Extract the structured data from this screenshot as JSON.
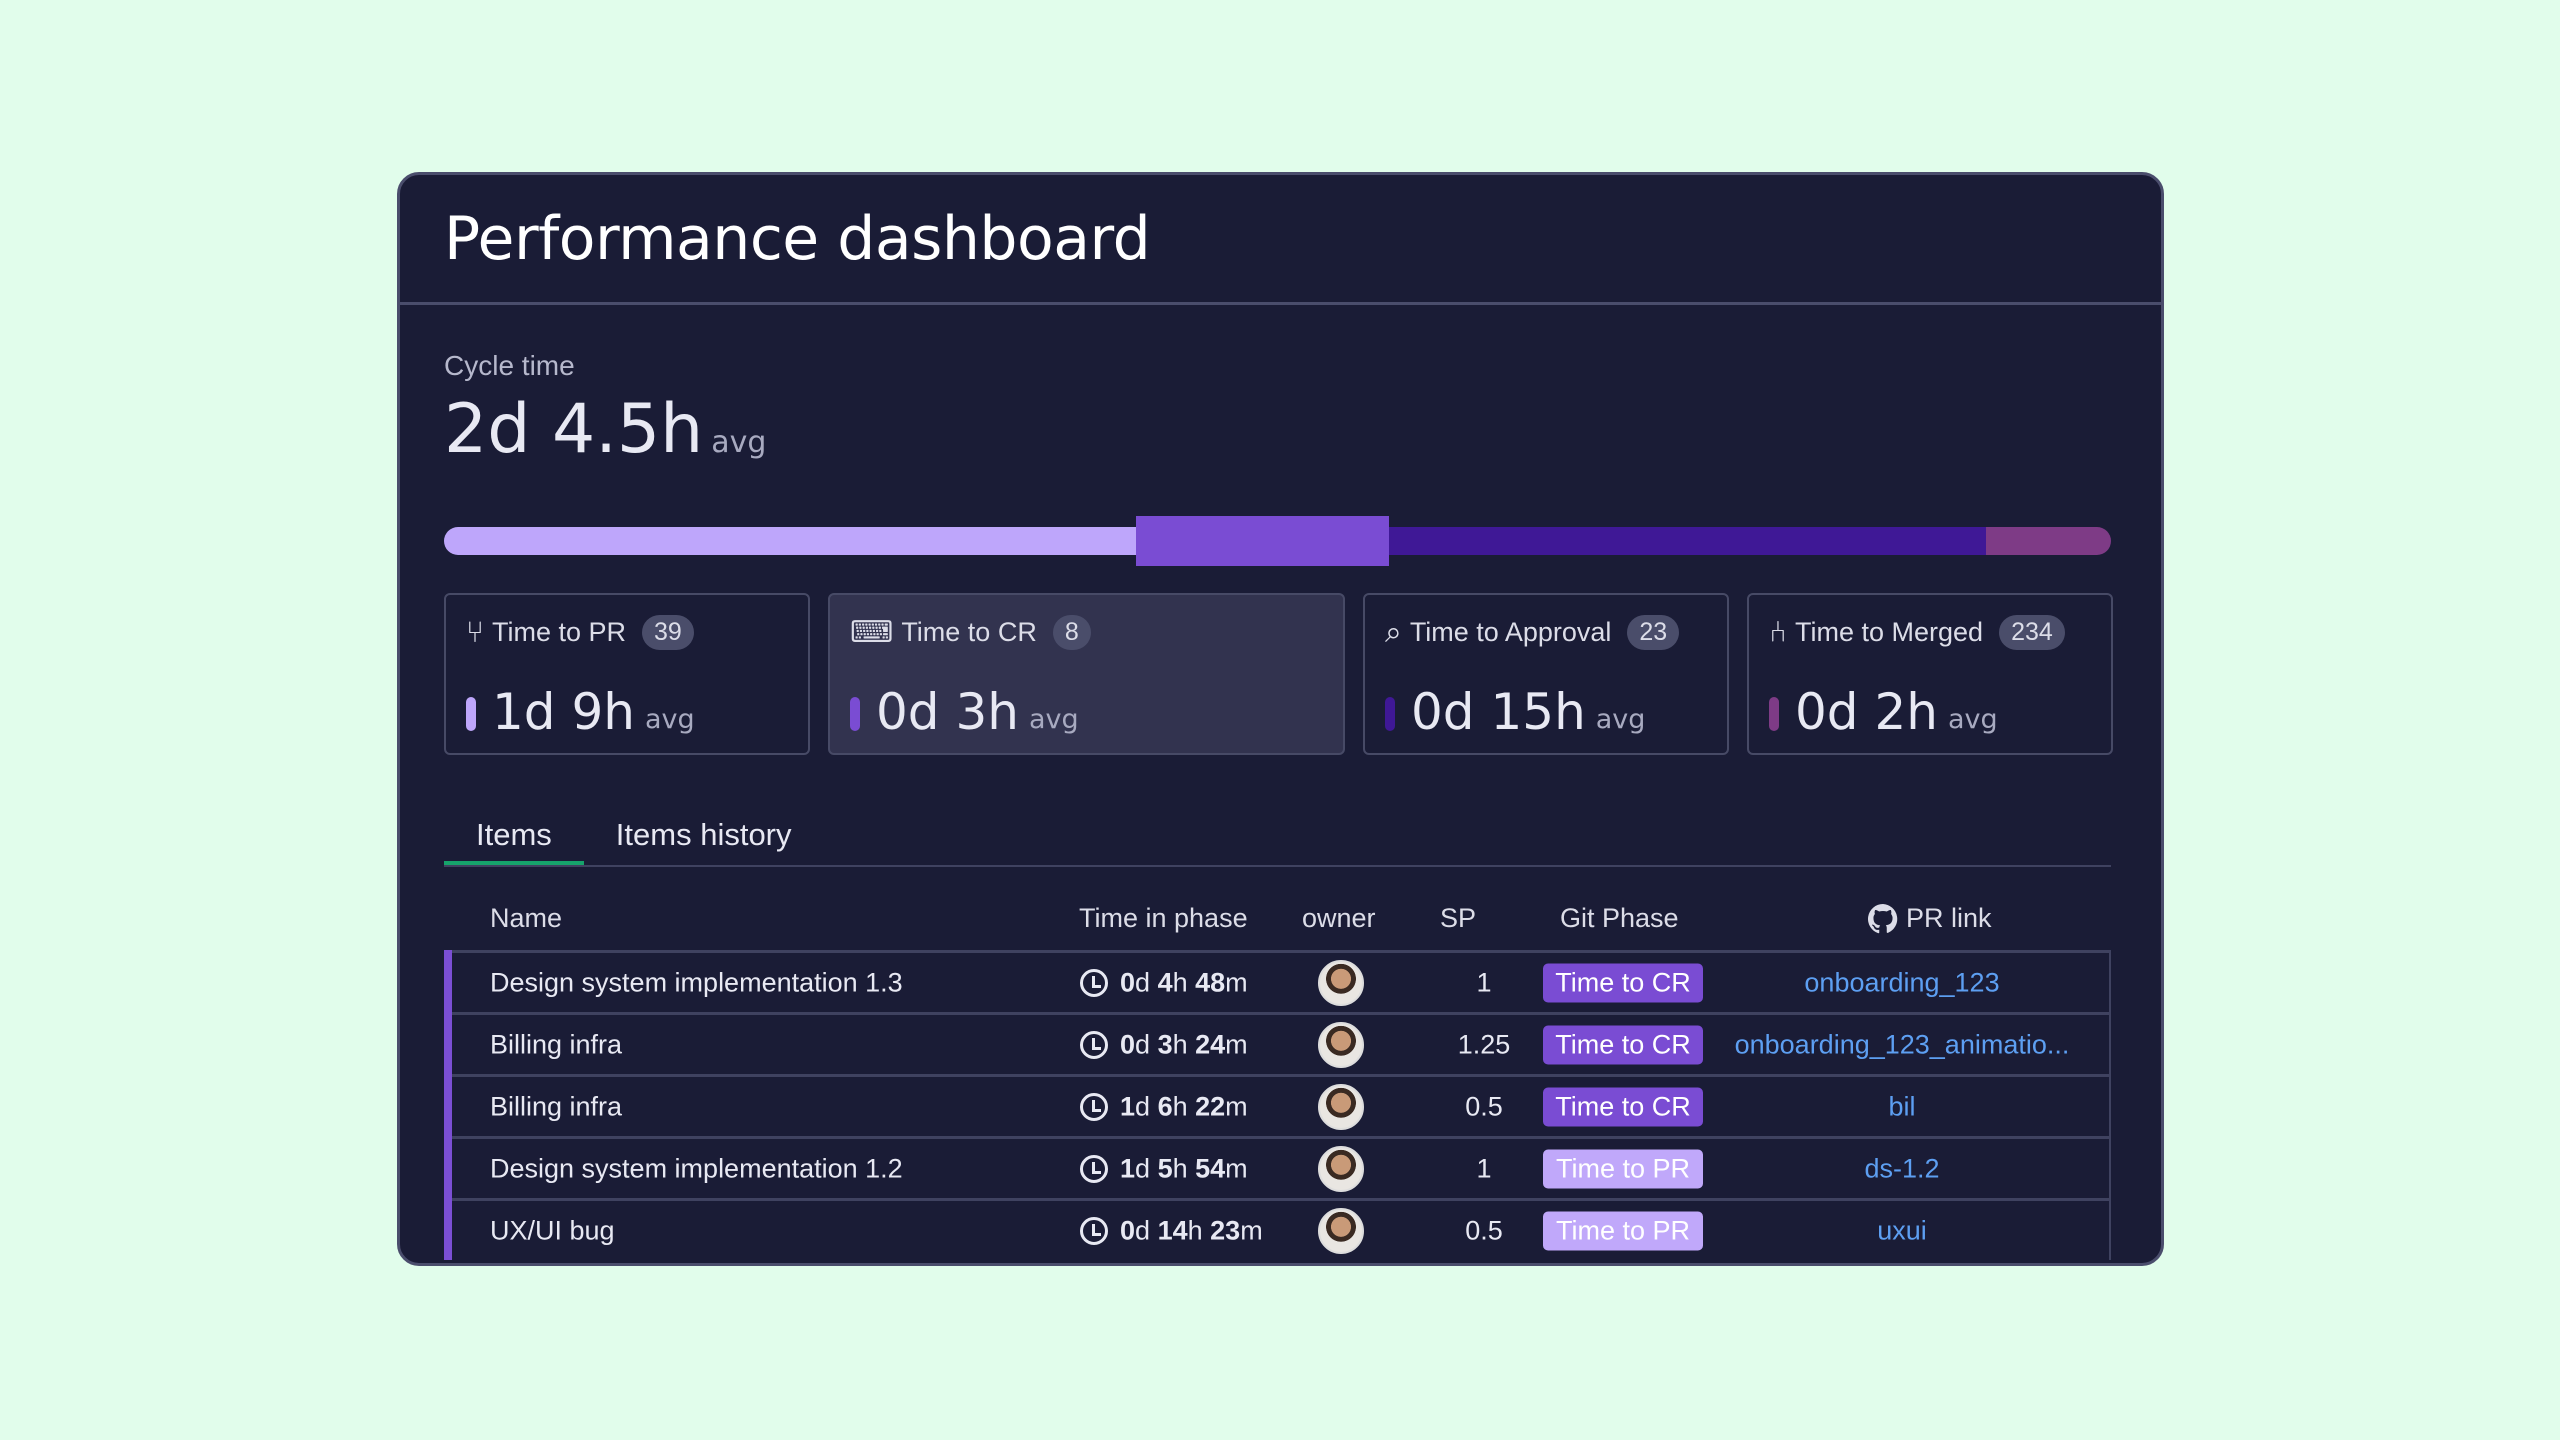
{
  "title": "Performance dashboard",
  "cycle": {
    "label": "Cycle time",
    "value": "2d 4.5h",
    "suffix": "avg"
  },
  "phase_bar": [
    {
      "name": "Time to PR",
      "color": "#bea6fb",
      "share": 41.5
    },
    {
      "name": "Time to CR",
      "color": "#7a4cd3",
      "share": 15.2,
      "selected": true
    },
    {
      "name": "Time to Approval",
      "color": "#3f1896",
      "share": 35.8
    },
    {
      "name": "Time to Merged",
      "color": "#7e3b86",
      "share": 7.5
    }
  ],
  "kpis": [
    {
      "label": "Time to PR",
      "count": "39",
      "value": "1d 9h",
      "suffix": "avg",
      "icon": "pull-request-icon",
      "color": "#bea6fb"
    },
    {
      "label": "Time to CR",
      "count": "8",
      "value": "0d 3h",
      "suffix": "avg",
      "icon": "code-review-icon",
      "color": "#7a4cd3"
    },
    {
      "label": "Time to Approval",
      "count": "23",
      "value": "0d 15h",
      "suffix": "avg",
      "icon": "search-check-icon",
      "color": "#3f1896"
    },
    {
      "label": "Time to Merged",
      "count": "234",
      "value": "0d 2h",
      "suffix": "avg",
      "icon": "merge-icon",
      "color": "#7e3b86"
    }
  ],
  "tabs": [
    {
      "label": "Items",
      "active": true
    },
    {
      "label": "Items history"
    }
  ],
  "table": {
    "headers": {
      "name": "Name",
      "time": "Time in phase",
      "owner": "owner",
      "sp": "SP",
      "phase": "Git Phase",
      "pr": "PR link"
    },
    "rows": [
      {
        "name": "Design system implementation 1.3",
        "d": "0",
        "h": "4",
        "m": "48",
        "sp": "1",
        "phase": "Time to CR",
        "pr": "onboarding_123"
      },
      {
        "name": "Billing infra",
        "d": "0",
        "h": "3",
        "m": "24",
        "sp": "1.25",
        "phase": "Time to CR",
        "pr": "onboarding_123_animatio..."
      },
      {
        "name": "Billing infra",
        "d": "1",
        "h": "6",
        "m": "22",
        "sp": "0.5",
        "phase": "Time to CR",
        "pr": "bil"
      },
      {
        "name": "Design system implementation 1.2",
        "d": "1",
        "h": "5",
        "m": "54",
        "sp": "1",
        "phase": "Time to PR",
        "pr": "ds-1.2"
      },
      {
        "name": "UX/UI bug",
        "d": "0",
        "h": "14",
        "m": "23",
        "sp": "0.5",
        "phase": "Time to PR",
        "pr": "uxui"
      }
    ]
  },
  "colors": {
    "cr_badge": "#7a4cd3",
    "pr_badge": "#c0a8fa",
    "link": "#5d9ff2",
    "tab_active": "#16a36b"
  }
}
